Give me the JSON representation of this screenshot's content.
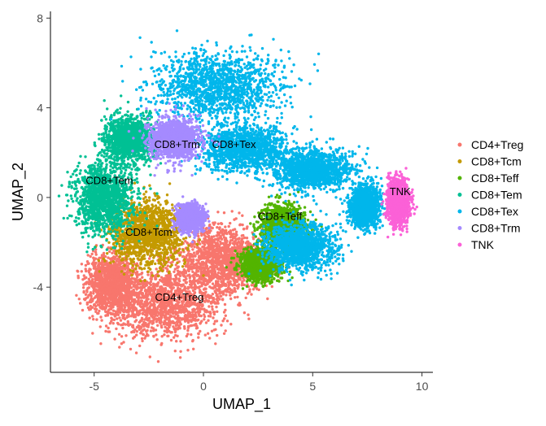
{
  "chart_data": {
    "type": "scatter",
    "title": "",
    "xlabel": "UMAP_1",
    "ylabel": "UMAP_2",
    "xlim": [
      -7.0,
      10.5
    ],
    "ylim": [
      -7.8,
      8.3
    ],
    "xticks": [
      -5,
      0,
      5,
      10
    ],
    "yticks": [
      -4,
      0,
      4,
      8
    ],
    "grid": false,
    "legend": "right",
    "series": [
      {
        "name": "CD4+Treg",
        "color": "#F8766D",
        "label_pos": [
          -1.1,
          -4.6
        ],
        "regions": [
          {
            "x": -1.8,
            "y": -4.7,
            "sx": 2.4,
            "sy": 1.45
          },
          {
            "x": 0.8,
            "y": -2.8,
            "sx": 1.8,
            "sy": 1.4
          },
          {
            "x": -4.2,
            "y": -3.8,
            "sx": 1.0,
            "sy": 1.1
          }
        ]
      },
      {
        "name": "CD8+Tcm",
        "color": "#C49A00",
        "label_pos": [
          -2.5,
          -1.7
        ],
        "regions": [
          {
            "x": -2.6,
            "y": -1.6,
            "sx": 1.5,
            "sy": 1.3
          }
        ]
      },
      {
        "name": "CD8+Teff",
        "color": "#53B400",
        "label_pos": [
          3.5,
          -1.0
        ],
        "regions": [
          {
            "x": 3.6,
            "y": -1.3,
            "sx": 0.9,
            "sy": 0.8
          },
          {
            "x": 2.6,
            "y": -3.0,
            "sx": 0.8,
            "sy": 0.6
          }
        ]
      },
      {
        "name": "CD8+Tem",
        "color": "#00C094",
        "label_pos": [
          -4.3,
          0.6
        ],
        "regions": [
          {
            "x": -4.6,
            "y": 0.0,
            "sx": 1.2,
            "sy": 1.5
          },
          {
            "x": -3.4,
            "y": 2.6,
            "sx": 1.0,
            "sy": 0.9
          }
        ]
      },
      {
        "name": "CD8+Tex",
        "color": "#00B6EB",
        "label_pos": [
          1.4,
          2.2
        ],
        "regions": [
          {
            "x": 0.6,
            "y": 5.0,
            "sx": 2.6,
            "sy": 1.3
          },
          {
            "x": 1.8,
            "y": 2.2,
            "sx": 1.8,
            "sy": 0.9
          },
          {
            "x": 5.0,
            "y": 1.2,
            "sx": 1.6,
            "sy": 0.8
          },
          {
            "x": 4.4,
            "y": -2.2,
            "sx": 1.4,
            "sy": 0.9
          },
          {
            "x": 7.4,
            "y": -0.4,
            "sx": 0.6,
            "sy": 0.8
          }
        ]
      },
      {
        "name": "CD8+Trm",
        "color": "#A58AFF",
        "label_pos": [
          -1.2,
          2.2
        ],
        "regions": [
          {
            "x": -1.3,
            "y": 2.6,
            "sx": 1.0,
            "sy": 0.8
          },
          {
            "x": -0.6,
            "y": -0.9,
            "sx": 0.5,
            "sy": 0.5
          }
        ]
      },
      {
        "name": "TNK",
        "color": "#FB61D7",
        "label_pos": [
          9.0,
          0.1
        ],
        "regions": [
          {
            "x": 8.9,
            "y": -0.2,
            "sx": 0.45,
            "sy": 0.9
          }
        ]
      }
    ]
  }
}
